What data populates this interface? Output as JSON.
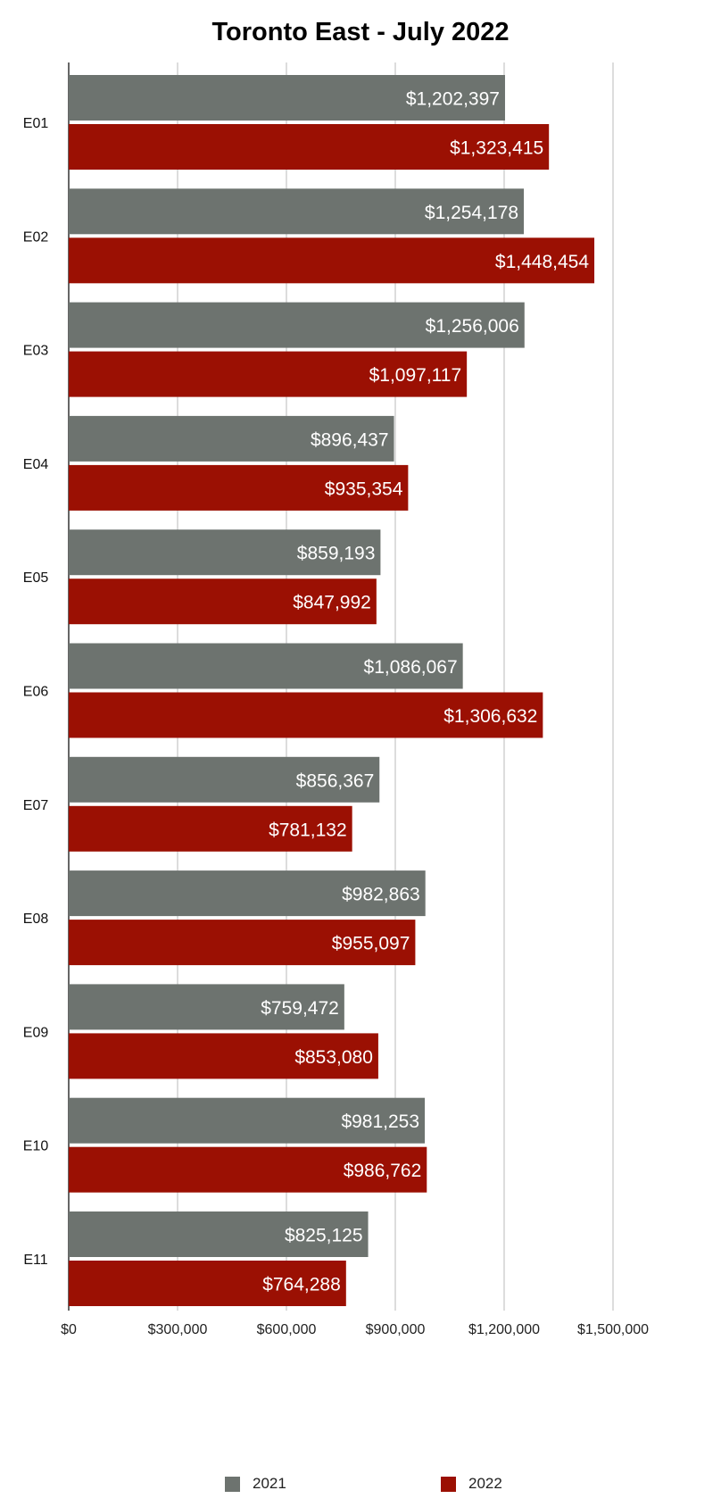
{
  "chart_data": {
    "type": "bar",
    "orientation": "horizontal",
    "title": "Toronto East - July 2022",
    "categories": [
      "E01",
      "E02",
      "E03",
      "E04",
      "E05",
      "E06",
      "E07",
      "E08",
      "E09",
      "E10",
      "E11"
    ],
    "series": [
      {
        "name": "2021",
        "color": "#6d736f",
        "values": [
          1202397,
          1254178,
          1256006,
          896437,
          859193,
          1086067,
          856367,
          982863,
          759472,
          981253,
          825125
        ],
        "labels": [
          "$1,202,397",
          "$1,254,178",
          "$1,256,006",
          "$896,437",
          "$859,193",
          "$1,086,067",
          "$856,367",
          "$982,863",
          "$759,472",
          "$981,253",
          "$825,125"
        ]
      },
      {
        "name": "2022",
        "color": "#9b1003",
        "values": [
          1323415,
          1448454,
          1097117,
          935354,
          847992,
          1306632,
          781132,
          955097,
          853080,
          986762,
          764288
        ],
        "labels": [
          "$1,323,415",
          "$1,448,454",
          "$1,097,117",
          "$935,354",
          "$847,992",
          "$1,306,632",
          "$781,132",
          "$955,097",
          "$853,080",
          "$986,762",
          "$764,288"
        ]
      }
    ],
    "xlim": [
      0,
      1500000
    ],
    "xticks": [
      0,
      300000,
      600000,
      900000,
      1200000,
      1500000
    ],
    "xtick_labels": [
      "$0",
      "$300,000",
      "$600,000",
      "$900,000",
      "$1,200,000",
      "$1,500,000"
    ],
    "grid": true,
    "legend_position": "bottom"
  }
}
